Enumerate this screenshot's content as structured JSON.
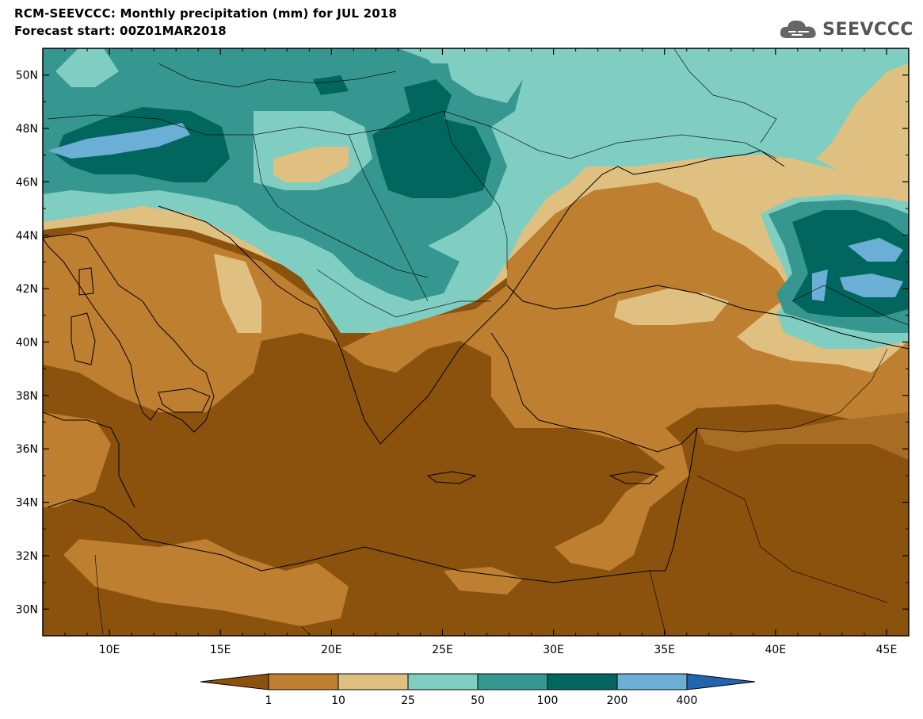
{
  "title_line1": "RCM-SEEVCCC: Monthly precipitation (mm) for JUL 2018",
  "title_line2": "Forecast start: 00Z01MAR2018",
  "logo_text": "SEEVCCC",
  "map": {
    "lat_labels": [
      "50N",
      "48N",
      "46N",
      "44N",
      "42N",
      "40N",
      "38N",
      "36N",
      "34N",
      "32N",
      "30N"
    ],
    "lon_labels": [
      "10E",
      "15E",
      "20E",
      "25E",
      "30E",
      "35E",
      "40E",
      "45E"
    ],
    "lat_values": [
      50,
      48,
      46,
      44,
      42,
      40,
      38,
      36,
      34,
      32,
      30
    ],
    "lon_values": [
      10,
      15,
      20,
      25,
      30,
      35,
      40,
      45
    ],
    "lat_range": [
      29,
      51
    ],
    "lon_range": [
      7,
      46
    ]
  },
  "legend": {
    "labels": [
      "1",
      "10",
      "25",
      "50",
      "100",
      "200",
      "400"
    ],
    "colors": [
      "#8b520e",
      "#bf7f30",
      "#dfc080",
      "#80cdc1",
      "#35978f",
      "#01665e",
      "#6baed6",
      "#2166ac"
    ]
  }
}
